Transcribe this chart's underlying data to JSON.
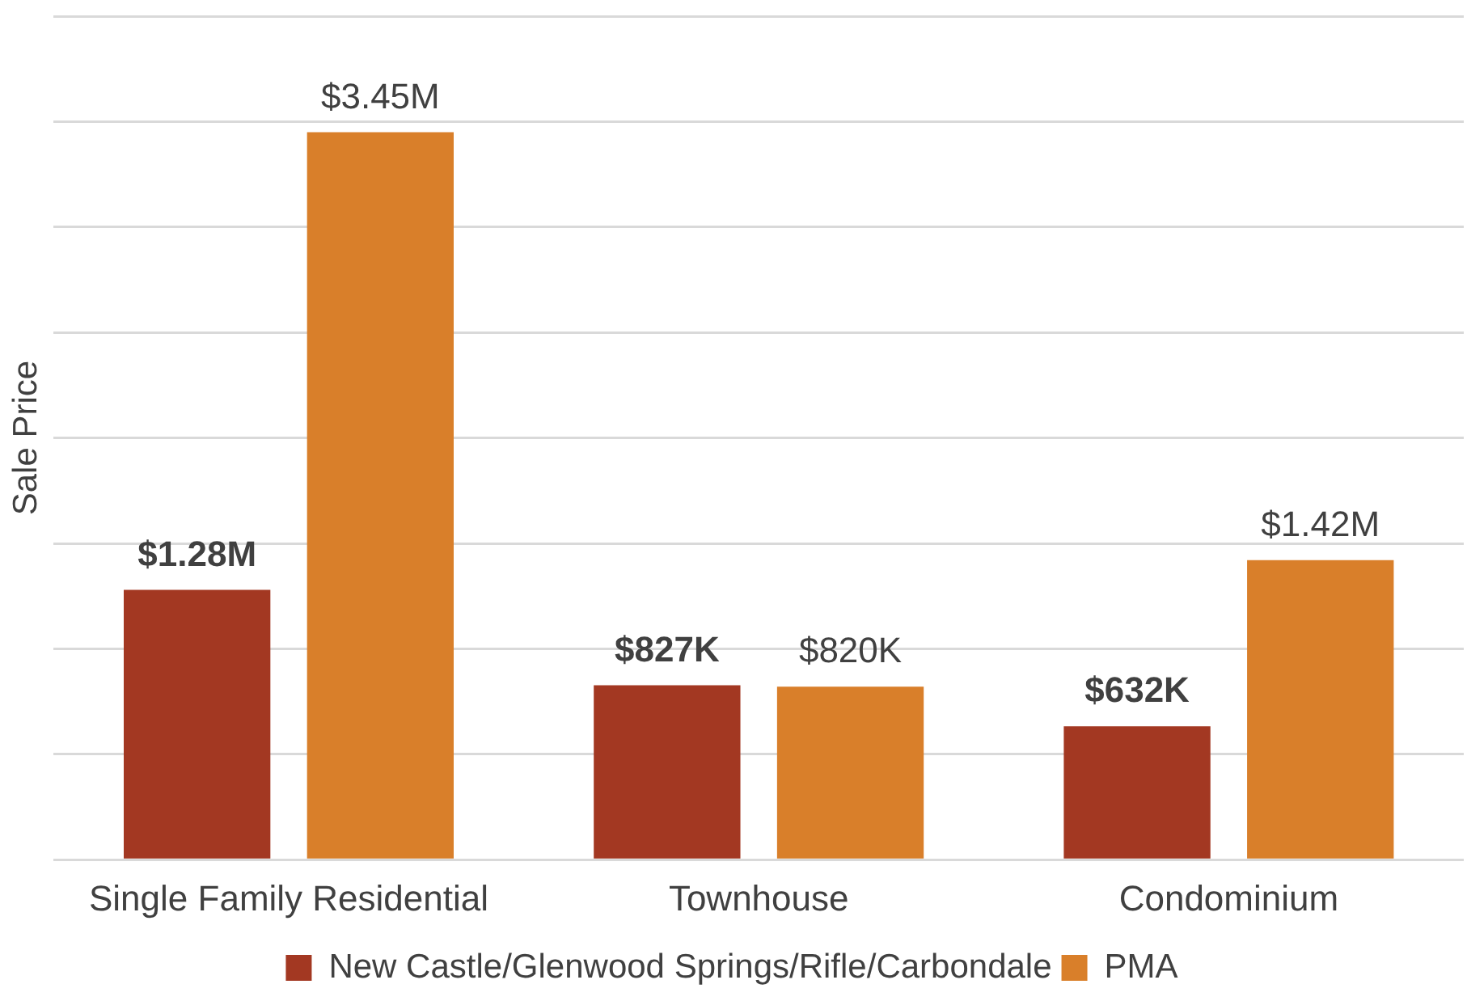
{
  "chart_data": {
    "type": "bar",
    "ylabel": "Sale Price",
    "categories": [
      "Single Family Residential",
      "Townhouse",
      "Condominium"
    ],
    "series": [
      {
        "name": "New Castle/Glenwood Springs/Rifle/Carbondale",
        "color": "#a33822",
        "values": [
          1280000,
          827000,
          632000
        ],
        "value_labels": [
          "$1.28M",
          "$827K",
          "$632K"
        ]
      },
      {
        "name": "PMA",
        "color": "#d97f2a",
        "values": [
          3450000,
          820000,
          1420000
        ],
        "value_labels": [
          "$3.45M",
          "$820K",
          "$1.42M"
        ]
      }
    ],
    "ylim": [
      0,
      4000000
    ],
    "yticks": [
      {
        "value": 0,
        "label": null
      },
      {
        "value": 500000,
        "label": null
      },
      {
        "value": 1000000,
        "label": null
      },
      {
        "value": 1500000,
        "label": null
      },
      {
        "value": 2000000,
        "label": null
      },
      {
        "value": 2500000,
        "label": null
      },
      {
        "value": 3000000,
        "label": null
      },
      {
        "value": 3500000,
        "label": null
      },
      {
        "value": 4000000,
        "label": null
      }
    ],
    "grid": "y",
    "legend": "bottom",
    "tick_labels": "x"
  }
}
